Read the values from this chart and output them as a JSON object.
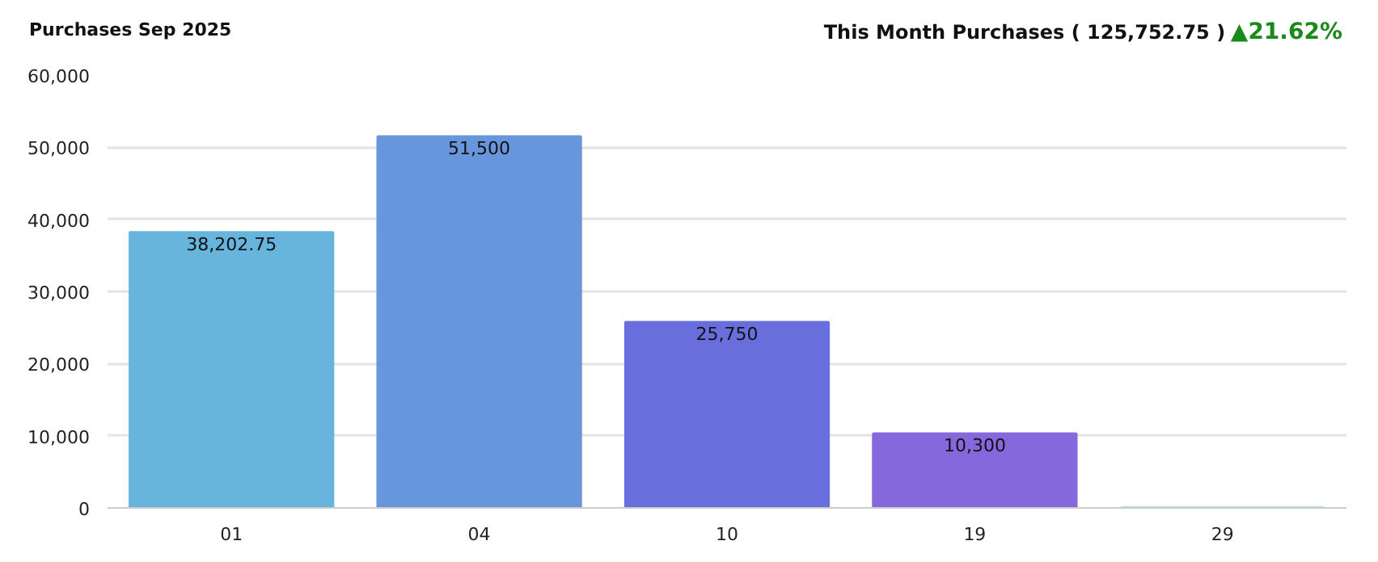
{
  "chart_data": {
    "type": "bar",
    "title": "Purchases Sep 2025",
    "annotations": [
      "This Month Purchases ( 125,752.75 )",
      "▲21.62%"
    ],
    "categories": [
      "01",
      "04",
      "10",
      "19",
      "29"
    ],
    "values": [
      38202.75,
      51500,
      25750,
      10300,
      0
    ],
    "value_labels": [
      "38,202.75",
      "51,500",
      "25,750",
      "10,300",
      null
    ],
    "colors": [
      "#67b5dc",
      "#6896dc",
      "#686fdc",
      "#8668dc",
      "#67b5dc"
    ],
    "ylim": [
      0,
      60000
    ],
    "yticks": [
      {
        "value": 0,
        "label": "0"
      },
      {
        "value": 10000,
        "label": "10,000"
      },
      {
        "value": 20000,
        "label": "20,000"
      },
      {
        "value": 30000,
        "label": "30,000"
      },
      {
        "value": 40000,
        "label": "40,000"
      },
      {
        "value": 50000,
        "label": "50,000"
      },
      {
        "value": 60000,
        "label": "60,000"
      }
    ],
    "grid": "y"
  }
}
